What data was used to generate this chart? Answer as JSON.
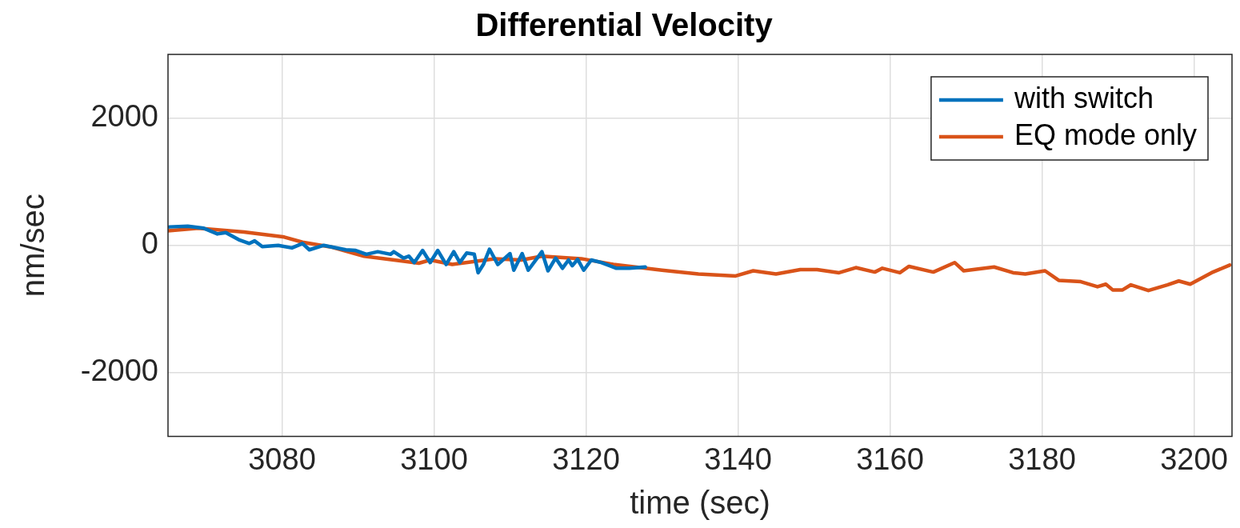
{
  "chart_data": {
    "type": "line",
    "title": "Differential Velocity",
    "xlabel": "time (sec)",
    "ylabel": "nm/sec",
    "xlim": [
      3065,
      3205
    ],
    "xticks": [
      3080,
      3100,
      3120,
      3140,
      3160,
      3180,
      3200
    ],
    "ylim": [
      -3000,
      3000
    ],
    "yticks": [
      -2000,
      0,
      2000
    ],
    "grid": true,
    "legend": "top right",
    "marker": "none",
    "line_style": "solid",
    "series": [
      {
        "name": "with switch",
        "color": "#0072bd",
        "x": [
          3065.2,
          3067.6,
          3069.7,
          3071.5,
          3072.6,
          3074.3,
          3075.7,
          3076.4,
          3077.4,
          3079.5,
          3081.3,
          3082.7,
          3083.6,
          3085.5,
          3088.4,
          3089.7,
          3091.1,
          3092.6,
          3094.3,
          3094.7,
          3096,
          3096.7,
          3097.4,
          3098.5,
          3099.5,
          3100.5,
          3101.6,
          3102.6,
          3103.4,
          3104.3,
          3105.3,
          3105.8,
          3106.5,
          3107.3,
          3108.4,
          3110,
          3110.5,
          3111.6,
          3112.4,
          3114.2,
          3115,
          3116,
          3116.9,
          3117.7,
          3118.2,
          3118.9,
          3119.7,
          3120.7,
          3122,
          3124,
          3125.7,
          3127.8
        ],
        "values": [
          290,
          300,
          270,
          180,
          200,
          90,
          30,
          70,
          -20,
          0,
          -40,
          30,
          -70,
          0,
          -70,
          -80,
          -140,
          -100,
          -140,
          -100,
          -200,
          -170,
          -270,
          -80,
          -270,
          -80,
          -300,
          -100,
          -270,
          -120,
          -140,
          -430,
          -300,
          -60,
          -300,
          -130,
          -390,
          -130,
          -390,
          -100,
          -400,
          -200,
          -360,
          -230,
          -320,
          -220,
          -390,
          -230,
          -270,
          -360,
          -360,
          -340
        ]
      },
      {
        "name": "EQ mode only",
        "color": "#d95319",
        "x": [
          3065,
          3069,
          3075,
          3080.3,
          3082.7,
          3086.6,
          3090.8,
          3096,
          3098,
          3099.5,
          3102.4,
          3106.8,
          3108,
          3111.5,
          3114.2,
          3119.4,
          3123.6,
          3130,
          3134.8,
          3139.7,
          3142,
          3145,
          3148.2,
          3150.4,
          3153.3,
          3155.5,
          3158,
          3159,
          3161.3,
          3162.5,
          3165.7,
          3168.5,
          3169.7,
          3173.7,
          3176.2,
          3177.8,
          3180.4,
          3182.2,
          3185.1,
          3187.3,
          3188.4,
          3189.3,
          3190.6,
          3191.7,
          3194,
          3196.5,
          3198,
          3199.5,
          3202.3,
          3204.7
        ],
        "values": [
          230,
          270,
          210,
          130,
          50,
          -30,
          -170,
          -250,
          -280,
          -230,
          -300,
          -230,
          -210,
          -230,
          -170,
          -210,
          -300,
          -390,
          -450,
          -480,
          -400,
          -450,
          -380,
          -380,
          -430,
          -350,
          -420,
          -360,
          -430,
          -330,
          -420,
          -270,
          -400,
          -340,
          -430,
          -450,
          -400,
          -550,
          -570,
          -650,
          -610,
          -700,
          -700,
          -620,
          -710,
          -620,
          -560,
          -610,
          -430,
          -310
        ]
      }
    ]
  }
}
